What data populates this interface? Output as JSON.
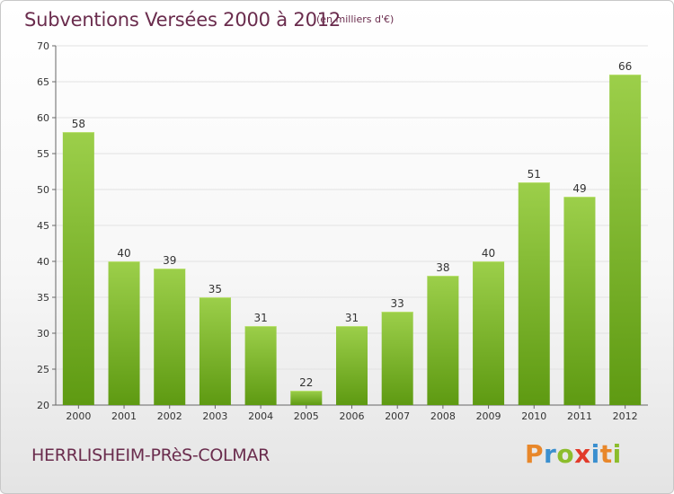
{
  "header": {
    "title": "Subventions Versées 2000 à 2012",
    "unit": "(en milliers d'€)"
  },
  "footer": {
    "commune": "HERRLISHEIM-PRèS-COLMAR",
    "logo_letters": [
      "P",
      "r",
      "o",
      "x",
      "i",
      "t",
      "i"
    ],
    "logo_colors": [
      "#e8872a",
      "#3a8fcf",
      "#8cbd2c",
      "#e23a2a",
      "#3a8fcf",
      "#e8872a",
      "#8cbd2c"
    ]
  },
  "colors": {
    "bar_top": "#9ccf4a",
    "bar_bottom": "#5e9a12",
    "text": "#333333",
    "title": "#6a2c4d"
  },
  "chart_data": {
    "type": "bar",
    "categories": [
      "2000",
      "2001",
      "2002",
      "2003",
      "2004",
      "2005",
      "2006",
      "2007",
      "2008",
      "2009",
      "2010",
      "2011",
      "2012"
    ],
    "values": [
      58,
      40,
      39,
      35,
      31,
      22,
      31,
      33,
      38,
      40,
      51,
      49,
      66
    ],
    "title": "Subventions Versées 2000 à 2012",
    "xlabel": "",
    "ylabel": "",
    "ylim": [
      20,
      70
    ],
    "yticks": [
      20,
      25,
      30,
      35,
      40,
      45,
      50,
      55,
      60,
      65,
      70
    ],
    "grid": true,
    "legend": "none"
  }
}
